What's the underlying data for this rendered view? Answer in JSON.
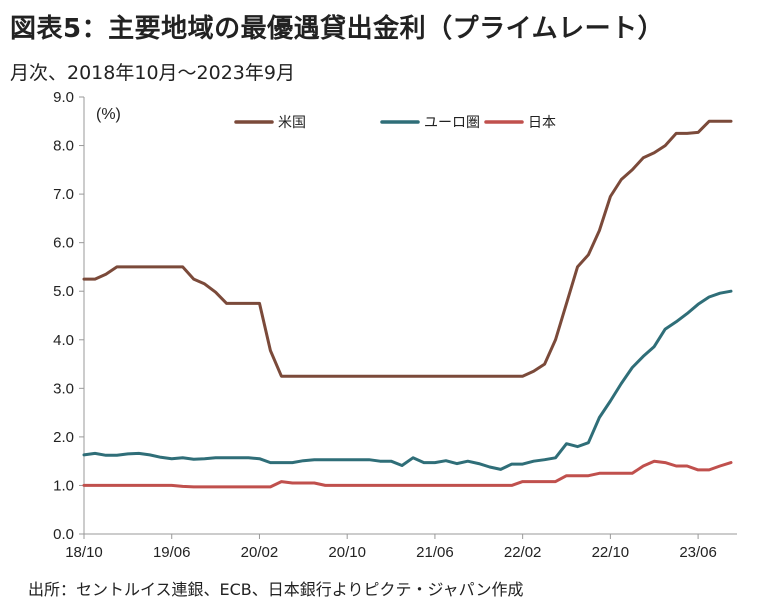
{
  "title": "図表5：主要地域の最優遇貸出金利（プライムレート）",
  "subtitle": "月次、2018年10月～2023年9月",
  "source": "出所：セントルイス連銀、ECB、日本銀行よりピクテ・ジャパン作成",
  "chart_data": {
    "type": "line",
    "unit_label": "(%)",
    "ylim": [
      0,
      9
    ],
    "y_ticks": [
      "0.0",
      "1.0",
      "2.0",
      "3.0",
      "4.0",
      "5.0",
      "6.0",
      "7.0",
      "8.0",
      "9.0"
    ],
    "x_ticks": [
      "18/10",
      "19/06",
      "20/02",
      "20/10",
      "21/06",
      "22/02",
      "22/10",
      "23/06"
    ],
    "x": [
      "18/10",
      "18/11",
      "18/12",
      "19/01",
      "19/02",
      "19/03",
      "19/04",
      "19/05",
      "19/06",
      "19/07",
      "19/08",
      "19/09",
      "19/10",
      "19/11",
      "19/12",
      "20/01",
      "20/02",
      "20/03",
      "20/04",
      "20/05",
      "20/06",
      "20/07",
      "20/08",
      "20/09",
      "20/10",
      "20/11",
      "20/12",
      "21/01",
      "21/02",
      "21/03",
      "21/04",
      "21/05",
      "21/06",
      "21/07",
      "21/08",
      "21/09",
      "21/10",
      "21/11",
      "21/12",
      "22/01",
      "22/02",
      "22/03",
      "22/04",
      "22/05",
      "22/06",
      "22/07",
      "22/08",
      "22/09",
      "22/10",
      "22/11",
      "22/12",
      "23/01",
      "23/02",
      "23/03",
      "23/04",
      "23/05",
      "23/06",
      "23/07",
      "23/08",
      "23/09"
    ],
    "legend_position": "top-center",
    "series": [
      {
        "name": "米国",
        "color": "#7b4a3a",
        "values": [
          5.25,
          5.25,
          5.35,
          5.5,
          5.5,
          5.5,
          5.5,
          5.5,
          5.5,
          5.5,
          5.25,
          5.15,
          4.98,
          4.75,
          4.75,
          4.75,
          4.75,
          3.78,
          3.25,
          3.25,
          3.25,
          3.25,
          3.25,
          3.25,
          3.25,
          3.25,
          3.25,
          3.25,
          3.25,
          3.25,
          3.25,
          3.25,
          3.25,
          3.25,
          3.25,
          3.25,
          3.25,
          3.25,
          3.25,
          3.25,
          3.25,
          3.35,
          3.5,
          4.0,
          4.75,
          5.5,
          5.75,
          6.25,
          6.95,
          7.3,
          7.5,
          7.75,
          7.85,
          8.0,
          8.25,
          8.25,
          8.27,
          8.5,
          8.5,
          8.5
        ]
      },
      {
        "name": "ユーロ圏",
        "color": "#2f6e78",
        "values": [
          1.63,
          1.66,
          1.62,
          1.62,
          1.65,
          1.66,
          1.63,
          1.58,
          1.55,
          1.57,
          1.54,
          1.55,
          1.57,
          1.57,
          1.57,
          1.57,
          1.55,
          1.47,
          1.47,
          1.47,
          1.51,
          1.53,
          1.53,
          1.53,
          1.53,
          1.53,
          1.53,
          1.5,
          1.5,
          1.41,
          1.57,
          1.47,
          1.47,
          1.51,
          1.45,
          1.5,
          1.45,
          1.38,
          1.33,
          1.44,
          1.44,
          1.5,
          1.53,
          1.57,
          1.86,
          1.8,
          1.88,
          2.4,
          2.74,
          3.1,
          3.43,
          3.66,
          3.86,
          4.22,
          4.37,
          4.54,
          4.73,
          4.88,
          4.96,
          5.0
        ]
      },
      {
        "name": "日本",
        "color": "#c0504d",
        "values": [
          1.0,
          1.0,
          1.0,
          1.0,
          1.0,
          1.0,
          1.0,
          1.0,
          1.0,
          0.98,
          0.97,
          0.97,
          0.97,
          0.97,
          0.97,
          0.97,
          0.97,
          0.97,
          1.08,
          1.05,
          1.05,
          1.05,
          1.0,
          1.0,
          1.0,
          1.0,
          1.0,
          1.0,
          1.0,
          1.0,
          1.0,
          1.0,
          1.0,
          1.0,
          1.0,
          1.0,
          1.0,
          1.0,
          1.0,
          1.0,
          1.08,
          1.08,
          1.08,
          1.08,
          1.2,
          1.2,
          1.2,
          1.25,
          1.25,
          1.25,
          1.25,
          1.4,
          1.5,
          1.47,
          1.4,
          1.4,
          1.32,
          1.32,
          1.4,
          1.47
        ]
      }
    ]
  }
}
